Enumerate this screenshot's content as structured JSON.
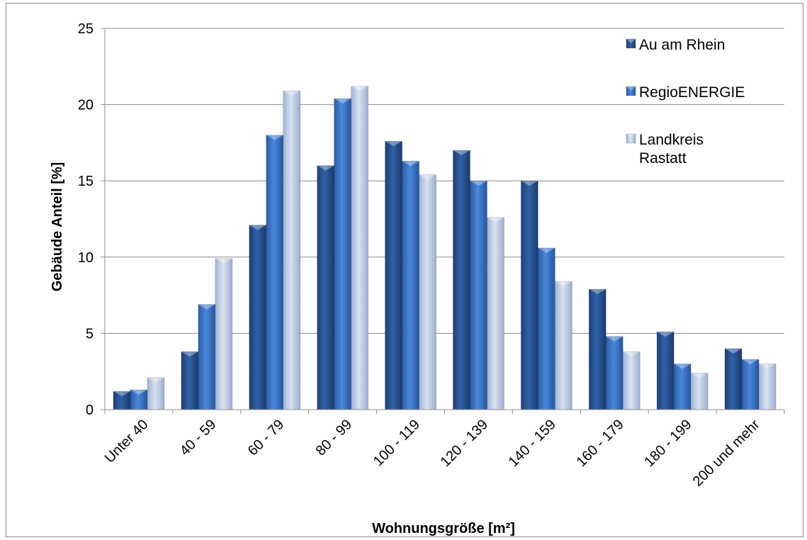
{
  "chart_data": {
    "type": "bar",
    "title": "",
    "xlabel": "Wohnungsgröße [m²]",
    "ylabel": "Gebäude Anteil [%]",
    "ylim": [
      0,
      25
    ],
    "yticks": [
      "0",
      "5",
      "10",
      "15",
      "20",
      "25"
    ],
    "ytick_values": [
      0,
      5,
      10,
      15,
      20,
      25
    ],
    "grid": true,
    "legend_position": "top-right",
    "categories": [
      "Unter 40",
      "40 - 59",
      "60 - 79",
      "80 - 99",
      "100 - 119",
      "120 - 139",
      "140 - 159",
      "160 - 179",
      "180 - 199",
      "200 und mehr"
    ],
    "series": [
      {
        "name": "Au am Rhein",
        "legend_lines": [
          "Au am Rhein"
        ],
        "color": "#2b5797",
        "values": [
          1.2,
          3.8,
          12.1,
          16.0,
          17.6,
          17.0,
          15.0,
          7.9,
          5.1,
          4.0
        ]
      },
      {
        "name": "RegioENERGIE",
        "legend_lines": [
          "RegioENERGIE"
        ],
        "color": "#3a76c9",
        "values": [
          1.3,
          6.9,
          18.0,
          20.4,
          16.3,
          15.0,
          10.6,
          4.8,
          3.0,
          3.3
        ]
      },
      {
        "name": "Landkreis Rastatt",
        "legend_lines": [
          "Landkreis",
          "Rastatt"
        ],
        "color": "#b6c6e0",
        "values": [
          2.1,
          9.9,
          20.9,
          21.2,
          15.4,
          12.6,
          8.4,
          3.8,
          2.4,
          3.0
        ]
      }
    ]
  }
}
